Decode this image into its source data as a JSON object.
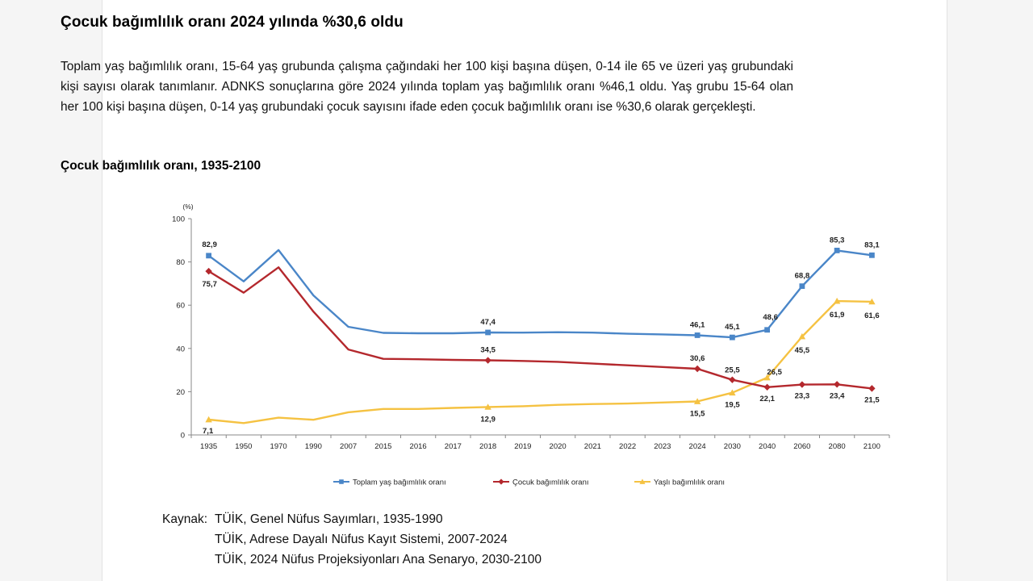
{
  "heading": "Çocuk bağımlılık oranı 2024 yılında %30,6 oldu",
  "intro": "Toplam yaş bağımlılık oranı, 15-64 yaş grubunda çalışma çağındaki her 100 kişi başına düşen, 0-14 ile 65 ve üzeri yaş grubundaki kişi sayısı olarak tanımlanır. ADNKS sonuçlarına göre 2024 yılında toplam yaş bağımlılık oranı %46,1 oldu. Yaş grubu 15-64 olan her 100 kişi başına düşen, 0-14 yaş grubundaki çocuk sayısını ifade eden çocuk bağımlılık oranı ise %30,6 olarak gerçekleşti.",
  "chart_data": {
    "type": "line",
    "title": "Çocuk bağımlılık oranı, 1935-2100",
    "ylabel": "(%)",
    "xlabel": "",
    "ylim": [
      0,
      100
    ],
    "yticks": [
      "0",
      "20",
      "40",
      "60",
      "80",
      "100"
    ],
    "grid": false,
    "legend_position": "bottom",
    "categories": [
      "1935",
      "1950",
      "1970",
      "1990",
      "2007",
      "2015",
      "2016",
      "2017",
      "2018",
      "2019",
      "2020",
      "2021",
      "2022",
      "2023",
      "2024",
      "2030",
      "2040",
      "2060",
      "2080",
      "2100"
    ],
    "series": [
      {
        "name": "Toplam yaş bağımlılık oranı",
        "color": "#4a86c8",
        "marker": "square",
        "values": [
          82.9,
          71.0,
          85.5,
          64.5,
          50.0,
          47.2,
          47.0,
          47.0,
          47.4,
          47.3,
          47.5,
          47.3,
          46.8,
          46.5,
          46.1,
          45.1,
          48.6,
          68.8,
          85.3,
          83.1
        ],
        "labels": [
          "82,9",
          "",
          "",
          "",
          "",
          "",
          "",
          "",
          "47,4",
          "",
          "",
          "",
          "",
          "",
          "46,1",
          "45,1",
          "48,6",
          "68,8",
          "85,3",
          "83,1"
        ]
      },
      {
        "name": "Çocuk bağımlılık oranı",
        "color": "#b4282d",
        "marker": "diamond",
        "values": [
          75.7,
          65.8,
          77.5,
          57.0,
          39.5,
          35.2,
          35.0,
          34.7,
          34.5,
          34.2,
          33.8,
          33.0,
          32.2,
          31.4,
          30.6,
          25.5,
          22.1,
          23.3,
          23.4,
          21.5
        ],
        "labels": [
          "75,7",
          "",
          "",
          "",
          "",
          "",
          "",
          "",
          "34,5",
          "",
          "",
          "",
          "",
          "",
          "30,6",
          "25,5",
          "22,1",
          "23,3",
          "23,4",
          "21,5"
        ]
      },
      {
        "name": "Yaşlı bağımlılık oranı",
        "color": "#f5c242",
        "marker": "triangle",
        "values": [
          7.1,
          5.5,
          8.0,
          7.0,
          10.5,
          12.0,
          12.0,
          12.5,
          12.9,
          13.3,
          13.9,
          14.3,
          14.5,
          15.0,
          15.5,
          19.5,
          26.5,
          45.5,
          61.9,
          61.6
        ],
        "labels": [
          "7,1",
          "",
          "",
          "",
          "",
          "",
          "",
          "",
          "12,9",
          "",
          "",
          "",
          "",
          "",
          "15,5",
          "19,5",
          "26,5",
          "45,5",
          "61,9",
          "61,6"
        ]
      }
    ]
  },
  "source": {
    "prefix": "Kaynak:",
    "lines": [
      "TÜİK, Genel Nüfus Sayımları, 1935-1990",
      "TÜİK, Adrese Dayalı Nüfus Kayıt Sistemi, 2007-2024",
      "TÜİK, 2024 Nüfus Projeksiyonları Ana Senaryo, 2030-2100"
    ]
  }
}
